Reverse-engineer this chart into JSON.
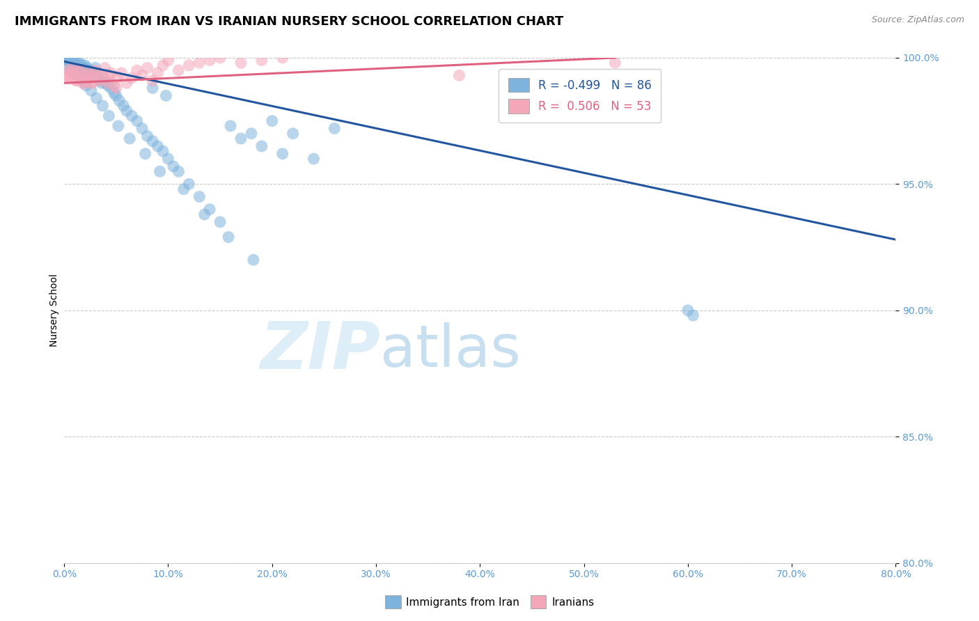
{
  "title": "IMMIGRANTS FROM IRAN VS IRANIAN NURSERY SCHOOL CORRELATION CHART",
  "source": "Source: ZipAtlas.com",
  "ylabel": "Nursery School",
  "xlim": [
    0.0,
    80.0
  ],
  "ylim": [
    80.0,
    100.0
  ],
  "xticks": [
    0.0,
    10.0,
    20.0,
    30.0,
    40.0,
    50.0,
    60.0,
    70.0,
    80.0
  ],
  "yticks": [
    80.0,
    85.0,
    90.0,
    95.0,
    100.0
  ],
  "blue_R": -0.499,
  "blue_N": 86,
  "pink_R": 0.506,
  "pink_N": 53,
  "blue_color": "#7eb3de",
  "pink_color": "#f4a7b9",
  "blue_line_color": "#2155a0",
  "pink_line_color": "#e06080",
  "axis_color": "#5b9bd5",
  "grid_color": "#bbbbbb",
  "watermark_color": "#ddeef8",
  "legend_blue_label": "Immigrants from Iran",
  "legend_pink_label": "Iranians",
  "blue_trend_x": [
    0.0,
    80.0
  ],
  "blue_trend_y": [
    99.85,
    92.8
  ],
  "pink_trend_x": [
    0.0,
    53.0
  ],
  "pink_trend_y": [
    99.0,
    100.0
  ],
  "blue_x": [
    0.2,
    0.3,
    0.4,
    0.5,
    0.6,
    0.7,
    0.8,
    0.9,
    1.0,
    1.1,
    1.2,
    1.3,
    1.4,
    1.5,
    1.6,
    1.7,
    1.8,
    1.9,
    2.0,
    2.1,
    2.2,
    2.3,
    2.4,
    2.5,
    2.6,
    2.7,
    2.8,
    2.9,
    3.0,
    3.2,
    3.4,
    3.6,
    3.8,
    4.0,
    4.2,
    4.5,
    4.8,
    5.0,
    5.3,
    5.7,
    6.0,
    6.5,
    7.0,
    7.5,
    8.0,
    8.5,
    9.0,
    9.5,
    10.0,
    10.5,
    11.0,
    12.0,
    13.0,
    14.0,
    15.0,
    16.0,
    17.0,
    18.0,
    19.0,
    20.0,
    21.0,
    22.0,
    24.0,
    26.0,
    0.4,
    0.6,
    0.9,
    1.3,
    1.7,
    2.1,
    2.6,
    3.1,
    3.7,
    4.3,
    5.2,
    6.3,
    7.8,
    9.2,
    11.5,
    13.5,
    15.8,
    18.2,
    60.0,
    60.5,
    8.5,
    9.8
  ],
  "blue_y": [
    99.9,
    99.9,
    100.0,
    100.0,
    99.8,
    99.9,
    100.0,
    99.8,
    99.9,
    99.7,
    99.8,
    99.6,
    99.7,
    99.8,
    99.6,
    99.7,
    99.5,
    99.6,
    99.7,
    99.5,
    99.6,
    99.4,
    99.5,
    99.5,
    99.3,
    99.4,
    99.3,
    99.4,
    99.6,
    99.3,
    99.1,
    99.0,
    99.2,
    99.0,
    98.9,
    98.8,
    98.6,
    98.5,
    98.3,
    98.1,
    97.9,
    97.7,
    97.5,
    97.2,
    96.9,
    96.7,
    96.5,
    96.3,
    96.0,
    95.7,
    95.5,
    95.0,
    94.5,
    94.0,
    93.5,
    97.3,
    96.8,
    97.0,
    96.5,
    97.5,
    96.2,
    97.0,
    96.0,
    97.2,
    99.7,
    99.5,
    99.4,
    99.3,
    99.1,
    98.9,
    98.7,
    98.4,
    98.1,
    97.7,
    97.3,
    96.8,
    96.2,
    95.5,
    94.8,
    93.8,
    92.9,
    92.0,
    90.0,
    89.8,
    98.8,
    98.5
  ],
  "pink_x": [
    0.2,
    0.4,
    0.6,
    0.8,
    1.0,
    1.2,
    1.4,
    1.6,
    1.8,
    2.0,
    2.2,
    2.4,
    2.6,
    2.8,
    3.0,
    3.3,
    3.6,
    3.9,
    4.2,
    4.5,
    4.8,
    5.1,
    5.5,
    6.0,
    6.5,
    7.0,
    7.5,
    8.0,
    8.5,
    9.0,
    9.5,
    10.0,
    11.0,
    12.0,
    13.0,
    14.0,
    15.0,
    17.0,
    19.0,
    21.0,
    0.3,
    0.7,
    1.1,
    1.5,
    1.9,
    2.3,
    2.7,
    3.2,
    3.8,
    4.4,
    5.0,
    38.0,
    53.0
  ],
  "pink_y": [
    99.3,
    99.5,
    99.2,
    99.6,
    99.4,
    99.1,
    99.5,
    99.2,
    99.0,
    99.3,
    99.1,
    99.4,
    99.0,
    99.2,
    99.5,
    99.1,
    99.3,
    99.6,
    99.0,
    99.4,
    98.9,
    99.2,
    99.4,
    99.0,
    99.2,
    99.5,
    99.3,
    99.6,
    99.1,
    99.4,
    99.7,
    99.9,
    99.5,
    99.7,
    99.8,
    99.9,
    100.0,
    99.8,
    99.9,
    100.0,
    99.2,
    99.4,
    99.1,
    99.5,
    99.0,
    99.3,
    99.0,
    99.4,
    99.1,
    99.3,
    98.8,
    99.3,
    99.8
  ],
  "title_fontsize": 13,
  "axis_label_fontsize": 10,
  "tick_fontsize": 10,
  "legend_fontsize": 12
}
